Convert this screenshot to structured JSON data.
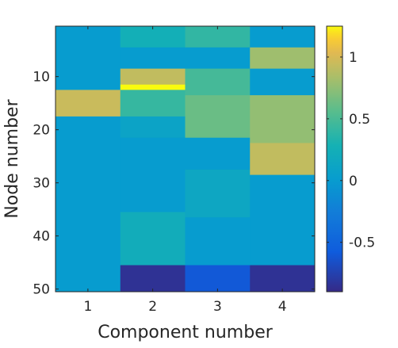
{
  "chart_data": {
    "type": "heatmap",
    "title": "",
    "xlabel": "Component number",
    "ylabel": "Node number",
    "x_categories": [
      1,
      2,
      3,
      4
    ],
    "x_ticks": [
      "1",
      "2",
      "3",
      "4"
    ],
    "y_range": [
      0.5,
      50.5
    ],
    "y_ticks": [
      "10",
      "20",
      "30",
      "40",
      "50"
    ],
    "y_direction": "reversed",
    "colormap": "parula",
    "clim": [
      -0.9,
      1.25
    ],
    "colorbar": {
      "placement": "right",
      "ticks": [
        "-0.5",
        "0",
        "0.5",
        "1"
      ]
    },
    "segments": [
      {
        "x": 1,
        "y_from": 1,
        "y_to": 12,
        "value": 0.0
      },
      {
        "x": 1,
        "y_from": 13,
        "y_to": 17,
        "value": 0.95
      },
      {
        "x": 1,
        "y_from": 18,
        "y_to": 50,
        "value": 0.0
      },
      {
        "x": 2,
        "y_from": 1,
        "y_to": 4,
        "value": 0.25
      },
      {
        "x": 2,
        "y_from": 5,
        "y_to": 8,
        "value": 0.0
      },
      {
        "x": 2,
        "y_from": 9,
        "y_to": 11,
        "value": 0.92
      },
      {
        "x": 2,
        "y_from": 12,
        "y_to": 12,
        "value": 1.25
      },
      {
        "x": 2,
        "y_from": 13,
        "y_to": 17,
        "value": 0.42
      },
      {
        "x": 2,
        "y_from": 18,
        "y_to": 21,
        "value": 0.1
      },
      {
        "x": 2,
        "y_from": 22,
        "y_to": 35,
        "value": 0.0
      },
      {
        "x": 2,
        "y_from": 36,
        "y_to": 45,
        "value": 0.22
      },
      {
        "x": 2,
        "y_from": 46,
        "y_to": 50,
        "value": -0.85
      },
      {
        "x": 3,
        "y_from": 1,
        "y_to": 4,
        "value": 0.4
      },
      {
        "x": 3,
        "y_from": 5,
        "y_to": 8,
        "value": 0.0
      },
      {
        "x": 3,
        "y_from": 9,
        "y_to": 13,
        "value": 0.48
      },
      {
        "x": 3,
        "y_from": 14,
        "y_to": 21,
        "value": 0.62
      },
      {
        "x": 3,
        "y_from": 22,
        "y_to": 27,
        "value": 0.0
      },
      {
        "x": 3,
        "y_from": 28,
        "y_to": 36,
        "value": 0.14
      },
      {
        "x": 3,
        "y_from": 37,
        "y_to": 45,
        "value": 0.0
      },
      {
        "x": 3,
        "y_from": 46,
        "y_to": 50,
        "value": -0.6
      },
      {
        "x": 4,
        "y_from": 1,
        "y_to": 4,
        "value": 0.0
      },
      {
        "x": 4,
        "y_from": 5,
        "y_to": 8,
        "value": 0.8
      },
      {
        "x": 4,
        "y_from": 9,
        "y_to": 13,
        "value": 0.0
      },
      {
        "x": 4,
        "y_from": 14,
        "y_to": 22,
        "value": 0.76
      },
      {
        "x": 4,
        "y_from": 23,
        "y_to": 28,
        "value": 0.92
      },
      {
        "x": 4,
        "y_from": 29,
        "y_to": 45,
        "value": 0.0
      },
      {
        "x": 4,
        "y_from": 46,
        "y_to": 50,
        "value": -0.85
      }
    ]
  }
}
